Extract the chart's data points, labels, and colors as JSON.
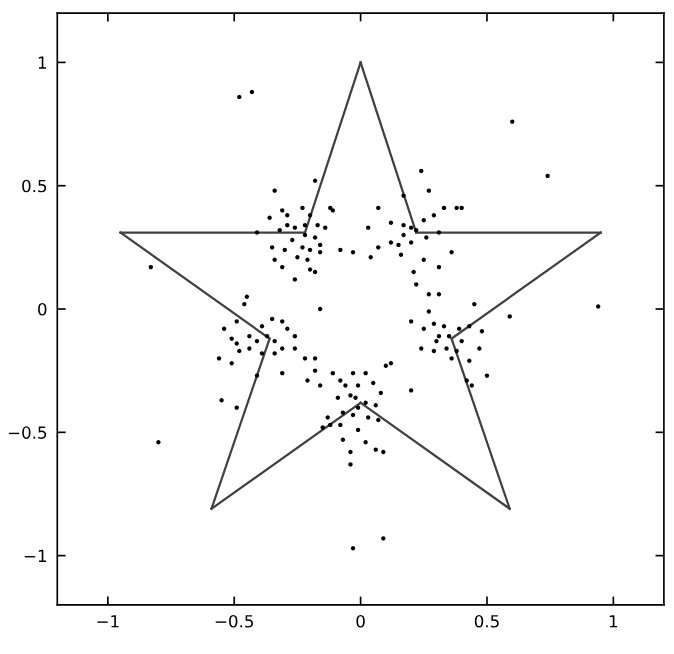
{
  "chart_data": {
    "type": "scatter",
    "xlim": [
      -1.2,
      1.2
    ],
    "ylim": [
      -1.2,
      1.2
    ],
    "xticks": [
      -1,
      -0.5,
      0,
      0.5,
      1
    ],
    "yticks": [
      -1,
      -0.5,
      0,
      0.5,
      1
    ],
    "grid": false,
    "legend": false,
    "marker": "circle",
    "series": [
      {
        "type": "line",
        "color": "#404040",
        "marker": "none",
        "line_style": "solid",
        "x": [
          0,
          0.22
        ],
        "values": [
          1,
          0.31
        ]
      },
      {
        "type": "line",
        "color": "#404040",
        "marker": "none",
        "line_style": "solid",
        "x": [
          0.22,
          0.95
        ],
        "values": [
          0.31,
          0.31
        ]
      },
      {
        "type": "line",
        "color": "#404040",
        "marker": "none",
        "line_style": "solid",
        "x": [
          0.95,
          0.36
        ],
        "values": [
          0.31,
          -0.12
        ]
      },
      {
        "type": "line",
        "color": "#404040",
        "marker": "none",
        "line_style": "solid",
        "x": [
          0.36,
          0.59
        ],
        "values": [
          -0.12,
          -0.81
        ]
      },
      {
        "type": "line",
        "color": "#404040",
        "marker": "none",
        "line_style": "solid",
        "x": [
          0.59,
          0
        ],
        "values": [
          -0.81,
          -0.38
        ]
      },
      {
        "type": "line",
        "color": "#404040",
        "marker": "none",
        "line_style": "solid",
        "x": [
          0,
          -0.59
        ],
        "values": [
          -0.38,
          -0.81
        ]
      },
      {
        "type": "line",
        "color": "#404040",
        "marker": "none",
        "line_style": "solid",
        "x": [
          -0.59,
          -0.36
        ],
        "values": [
          -0.81,
          -0.12
        ]
      },
      {
        "type": "line",
        "color": "#404040",
        "marker": "none",
        "line_style": "solid",
        "x": [
          -0.36,
          -0.95
        ],
        "values": [
          -0.12,
          0.31
        ]
      },
      {
        "type": "line",
        "color": "#404040",
        "marker": "none",
        "line_style": "solid",
        "x": [
          -0.95,
          -0.22
        ],
        "values": [
          0.31,
          0.31
        ]
      },
      {
        "type": "line",
        "color": "#404040",
        "marker": "none",
        "line_style": "solid",
        "x": [
          -0.22,
          0
        ],
        "values": [
          0.31,
          1
        ]
      },
      {
        "color": "#000000",
        "x": [
          -0.48,
          -0.43,
          0.6,
          0.74,
          -0.83,
          -0.8,
          0.94,
          -0.03,
          0.09,
          0.59,
          -0.55,
          -0.49,
          -0.34,
          -0.41,
          -0.36,
          -0.31,
          -0.29,
          -0.23,
          -0.2,
          -0.17,
          -0.26,
          -0.22,
          -0.18,
          -0.16,
          -0.27,
          -0.23,
          -0.2,
          -0.3,
          -0.25,
          -0.21,
          -0.34,
          -0.31,
          -0.26,
          -0.2,
          -0.18,
          -0.12,
          -0.11,
          -0.16,
          -0.08,
          -0.29,
          -0.32,
          -0.22,
          -0.14,
          -0.18,
          -0.35,
          0.24,
          0.27,
          0.07,
          0.03,
          0.12,
          0.17,
          0.2,
          0.22,
          0.25,
          0.29,
          0.33,
          0.38,
          0.4,
          0.17,
          0.15,
          0.2,
          0.26,
          0.31,
          0.12,
          0.07,
          0.36,
          0.25,
          0.21,
          0.22,
          0.27,
          -0.03,
          0.04,
          0.16,
          0.31,
          0.17,
          0.45,
          0.31,
          0.27,
          0.2,
          0.25,
          0.29,
          0.33,
          0.35,
          0.39,
          0.43,
          0.48,
          0.3,
          0.34,
          0.38,
          0.4,
          0.24,
          0.29,
          0.47,
          0.43,
          0.42,
          0.44,
          0.5,
          0.2,
          0.36,
          0.31,
          -0.45,
          -0.46,
          -0.49,
          -0.54,
          -0.51,
          -0.44,
          -0.39,
          -0.35,
          -0.31,
          -0.29,
          -0.26,
          -0.37,
          -0.41,
          -0.34,
          -0.31,
          -0.44,
          -0.48,
          -0.39,
          -0.34,
          -0.26,
          -0.56,
          -0.51,
          -0.31,
          -0.22,
          -0.18,
          -0.16,
          -0.41,
          -0.49,
          -0.03,
          0.02,
          0.1,
          0.12,
          -0.08,
          -0.06,
          -0.01,
          0.05,
          -0.04,
          -0.02,
          0.02,
          0.06,
          0.08,
          -0.09,
          -0.07,
          -0.03,
          0.03,
          0.07,
          -0.13,
          -0.15,
          -0.08,
          -0.01,
          -0.07,
          0.02,
          -0.04,
          0.06,
          0.09,
          -0.04,
          -0.18,
          -0.16,
          -0.11,
          -0.21,
          -0.12,
          -0.01
        ],
        "values": [
          0.86,
          0.88,
          0.76,
          0.54,
          0.17,
          -0.54,
          0.01,
          -0.97,
          -0.93,
          -0.03,
          -0.37,
          -0.4,
          0.48,
          0.31,
          0.37,
          0.4,
          0.38,
          0.41,
          0.38,
          0.34,
          0.33,
          0.3,
          0.29,
          0.26,
          0.28,
          0.25,
          0.24,
          0.24,
          0.21,
          0.2,
          0.2,
          0.17,
          0.12,
          0.16,
          0.52,
          0.41,
          0.4,
          0.23,
          0.24,
          0.34,
          0.32,
          0.34,
          0.33,
          0.15,
          0.25,
          0.56,
          0.48,
          0.41,
          0.33,
          0.35,
          0.34,
          0.33,
          0.32,
          0.36,
          0.38,
          0.41,
          0.41,
          0.41,
          0.3,
          0.26,
          0.27,
          0.29,
          0.31,
          0.27,
          0.25,
          0.23,
          0.2,
          0.15,
          0.1,
          0.06,
          0.23,
          0.21,
          0.22,
          0.17,
          0.46,
          0.02,
          0.06,
          -0.01,
          -0.05,
          -0.08,
          -0.06,
          -0.07,
          -0.11,
          -0.08,
          -0.07,
          -0.09,
          -0.13,
          -0.16,
          -0.17,
          -0.13,
          -0.16,
          -0.17,
          -0.16,
          -0.21,
          -0.29,
          -0.31,
          -0.27,
          -0.33,
          -0.2,
          -0.11,
          0.05,
          0.02,
          -0.05,
          -0.08,
          -0.12,
          -0.11,
          -0.07,
          -0.04,
          -0.05,
          -0.08,
          -0.11,
          -0.11,
          -0.13,
          -0.13,
          -0.16,
          -0.16,
          -0.17,
          -0.18,
          -0.18,
          -0.16,
          -0.2,
          -0.22,
          -0.26,
          -0.2,
          -0.2,
          0.0,
          -0.27,
          -0.14,
          -0.26,
          -0.26,
          -0.23,
          -0.22,
          -0.29,
          -0.31,
          -0.31,
          -0.3,
          -0.35,
          -0.36,
          -0.38,
          -0.39,
          -0.34,
          -0.36,
          -0.42,
          -0.43,
          -0.44,
          -0.45,
          -0.44,
          -0.48,
          -0.47,
          -0.49,
          -0.53,
          -0.54,
          -0.58,
          -0.57,
          -0.58,
          -0.63,
          -0.25,
          -0.31,
          -0.26,
          -0.29,
          -0.47,
          -0.4
        ]
      }
    ]
  }
}
